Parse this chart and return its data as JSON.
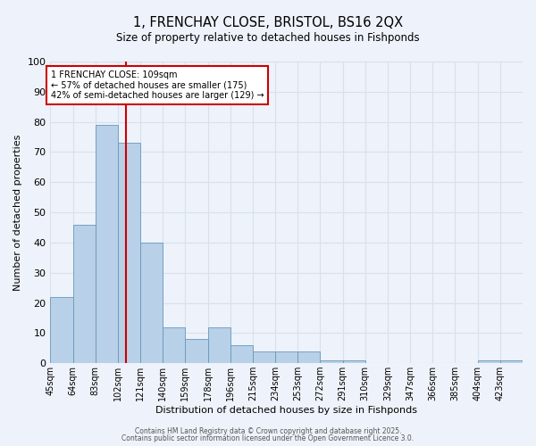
{
  "title_line1": "1, FRENCHAY CLOSE, BRISTOL, BS16 2QX",
  "title_line2": "Size of property relative to detached houses in Fishponds",
  "xlabel": "Distribution of detached houses by size in Fishponds",
  "ylabel": "Number of detached properties",
  "bin_labels": [
    "45sqm",
    "64sqm",
    "83sqm",
    "102sqm",
    "121sqm",
    "140sqm",
    "159sqm",
    "178sqm",
    "196sqm",
    "215sqm",
    "234sqm",
    "253sqm",
    "272sqm",
    "291sqm",
    "310sqm",
    "329sqm",
    "347sqm",
    "366sqm",
    "385sqm",
    "404sqm",
    "423sqm"
  ],
  "values": [
    22,
    46,
    79,
    73,
    40,
    12,
    8,
    12,
    6,
    4,
    4,
    4,
    1,
    1,
    0,
    0,
    0,
    0,
    0,
    1,
    1
  ],
  "bar_color": "#b8d0e8",
  "bar_edge_color": "#6699bb",
  "vline_x": 3.37,
  "vline_color": "#cc0000",
  "annotation_text": "1 FRENCHAY CLOSE: 109sqm\n← 57% of detached houses are smaller (175)\n42% of semi-detached houses are larger (129) →",
  "annotation_box_color": "#ffffff",
  "annotation_box_edge": "#cc0000",
  "ylim": [
    0,
    100
  ],
  "yticks": [
    0,
    10,
    20,
    30,
    40,
    50,
    60,
    70,
    80,
    90,
    100
  ],
  "background_color": "#eef2fa",
  "grid_color": "#d8e0ee",
  "footer_line1": "Contains HM Land Registry data © Crown copyright and database right 2025.",
  "footer_line2": "Contains public sector information licensed under the Open Government Licence 3.0."
}
